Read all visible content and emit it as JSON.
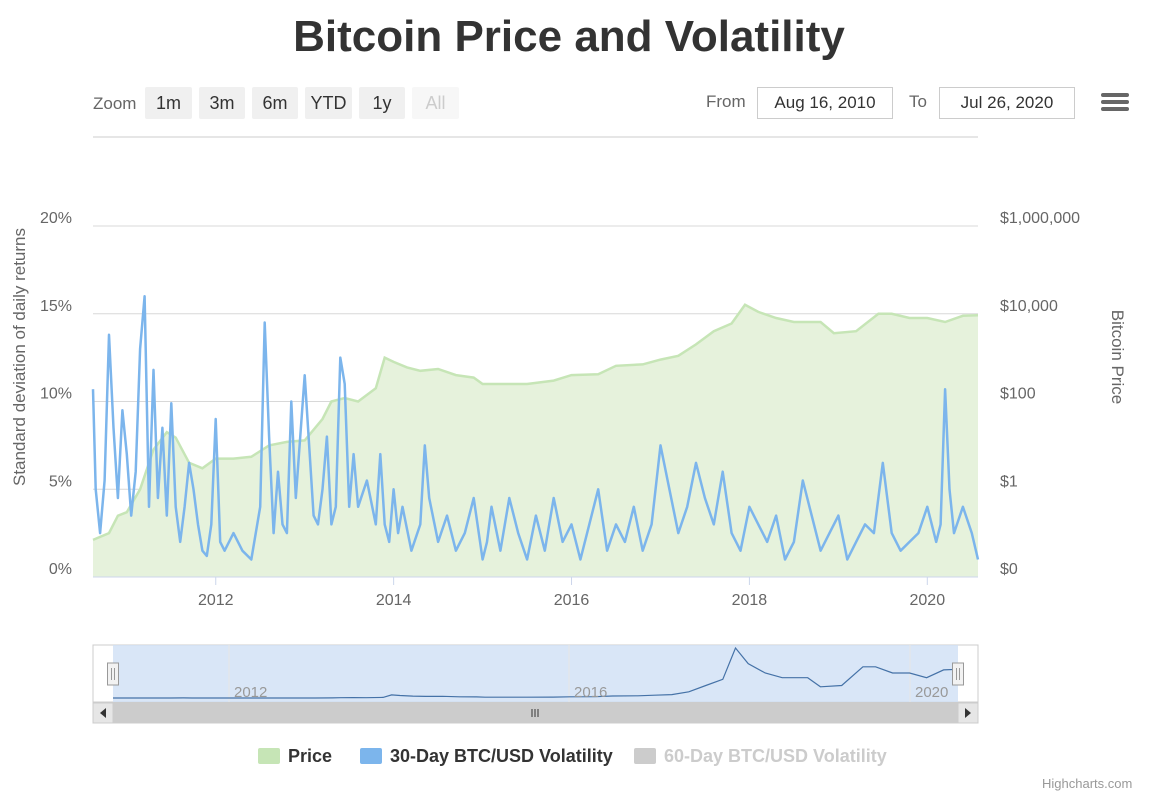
{
  "title": "Bitcoin Price and Volatility",
  "zoom": {
    "label": "Zoom",
    "buttons": [
      {
        "label": "1m",
        "enabled": true
      },
      {
        "label": "3m",
        "enabled": true
      },
      {
        "label": "6m",
        "enabled": true
      },
      {
        "label": "YTD",
        "enabled": true
      },
      {
        "label": "1y",
        "enabled": true
      },
      {
        "label": "All",
        "enabled": false
      }
    ]
  },
  "range": {
    "from_label": "From",
    "from_value": "Aug 16, 2010",
    "to_label": "To",
    "to_value": "Jul 26, 2020"
  },
  "menu_icon": "hamburger-menu-icon",
  "legend": [
    {
      "name": "Price",
      "color": "#c6e5b6",
      "visible": true
    },
    {
      "name": "30-Day BTC/USD Volatility",
      "color": "#7cb5ec",
      "visible": true
    },
    {
      "name": "60-Day BTC/USD Volatility",
      "color": "#cccccc",
      "visible": false
    }
  ],
  "credits": "Highcharts.com",
  "navigator": {
    "tick_labels": [
      "2012",
      "2016",
      "2020"
    ],
    "scroll_icons": [
      "scroll-left-icon",
      "scroll-grip-icon",
      "scroll-right-icon"
    ]
  },
  "chart_data": {
    "type": "line",
    "x_range": [
      2010.62,
      2020.57
    ],
    "x_ticks": [
      {
        "label": "2012",
        "value": 2012
      },
      {
        "label": "2014",
        "value": 2014
      },
      {
        "label": "2016",
        "value": 2016
      },
      {
        "label": "2018",
        "value": 2018
      },
      {
        "label": "2020",
        "value": 2020
      }
    ],
    "y_left": {
      "label": "Standard deviation of daily returns",
      "ticks": [
        "0%",
        "5%",
        "10%",
        "15%",
        "20%"
      ],
      "range": [
        0,
        20
      ]
    },
    "y_right": {
      "label": "Bitcoin Price",
      "scale": "log",
      "ticks": [
        "$0",
        "$1",
        "$100",
        "$10,000",
        "$1,000,000"
      ]
    },
    "colors": {
      "price_fill": "#e6f2dc",
      "price_line": "#c6e5b6",
      "volatility": "#7cb5ec",
      "grid": "#d8d8d8"
    },
    "series": [
      {
        "name": "Price",
        "type": "area",
        "x": [
          2010.62,
          2010.8,
          2010.9,
          2011.0,
          2011.15,
          2011.3,
          2011.45,
          2011.55,
          2011.7,
          2011.85,
          2012.0,
          2012.2,
          2012.4,
          2012.6,
          2012.8,
          2013.0,
          2013.2,
          2013.3,
          2013.45,
          2013.6,
          2013.8,
          2013.9,
          2014.0,
          2014.15,
          2014.3,
          2014.5,
          2014.7,
          2014.9,
          2015.0,
          2015.2,
          2015.5,
          2015.8,
          2016.0,
          2016.3,
          2016.5,
          2016.8,
          2017.0,
          2017.2,
          2017.4,
          2017.6,
          2017.8,
          2017.95,
          2018.1,
          2018.3,
          2018.5,
          2018.8,
          2018.95,
          2019.2,
          2019.45,
          2019.6,
          2019.8,
          2020.0,
          2020.2,
          2020.4,
          2020.57
        ],
        "values": [
          0.07,
          0.1,
          0.25,
          0.3,
          1.0,
          8.0,
          20.0,
          15.0,
          4.0,
          3.0,
          5.0,
          5.0,
          5.5,
          10.0,
          12.0,
          13.0,
          40.0,
          100.0,
          120.0,
          100.0,
          200.0,
          1000.0,
          800.0,
          600.0,
          500.0,
          550.0,
          400.0,
          350.0,
          250.0,
          250.0,
          250.0,
          300.0,
          400.0,
          420.0,
          650.0,
          700.0,
          900.0,
          1100.0,
          2000.0,
          4000.0,
          6000.0,
          16000.0,
          11000.0,
          8000.0,
          6500.0,
          6500.0,
          3600.0,
          4000.0,
          10000.0,
          10000.0,
          8000.0,
          8000.0,
          6500.0,
          9000.0,
          9200.0
        ]
      },
      {
        "name": "30-Day BTC/USD Volatility",
        "type": "line",
        "x": [
          2010.62,
          2010.65,
          2010.7,
          2010.75,
          2010.8,
          2010.85,
          2010.9,
          2010.95,
          2011.0,
          2011.05,
          2011.1,
          2011.15,
          2011.2,
          2011.25,
          2011.3,
          2011.35,
          2011.4,
          2011.45,
          2011.5,
          2011.55,
          2011.6,
          2011.65,
          2011.7,
          2011.75,
          2011.8,
          2011.85,
          2011.9,
          2011.95,
          2012.0,
          2012.05,
          2012.1,
          2012.2,
          2012.3,
          2012.4,
          2012.5,
          2012.55,
          2012.6,
          2012.65,
          2012.7,
          2012.75,
          2012.8,
          2012.85,
          2012.9,
          2013.0,
          2013.1,
          2013.15,
          2013.2,
          2013.25,
          2013.3,
          2013.35,
          2013.4,
          2013.45,
          2013.5,
          2013.55,
          2013.6,
          2013.7,
          2013.8,
          2013.85,
          2013.9,
          2013.95,
          2014.0,
          2014.05,
          2014.1,
          2014.2,
          2014.3,
          2014.35,
          2014.4,
          2014.5,
          2014.6,
          2014.7,
          2014.8,
          2014.9,
          2015.0,
          2015.05,
          2015.1,
          2015.2,
          2015.3,
          2015.4,
          2015.5,
          2015.6,
          2015.7,
          2015.8,
          2015.9,
          2016.0,
          2016.1,
          2016.2,
          2016.3,
          2016.4,
          2016.5,
          2016.6,
          2016.7,
          2016.8,
          2016.9,
          2017.0,
          2017.1,
          2017.2,
          2017.3,
          2017.4,
          2017.5,
          2017.6,
          2017.7,
          2017.8,
          2017.9,
          2018.0,
          2018.1,
          2018.2,
          2018.3,
          2018.4,
          2018.5,
          2018.6,
          2018.7,
          2018.8,
          2018.9,
          2019.0,
          2019.1,
          2019.2,
          2019.3,
          2019.4,
          2019.5,
          2019.6,
          2019.7,
          2019.8,
          2019.9,
          2020.0,
          2020.1,
          2020.15,
          2020.2,
          2020.25,
          2020.3,
          2020.4,
          2020.5,
          2020.57
        ],
        "values": [
          10.7,
          5.0,
          2.5,
          5.5,
          13.8,
          8.5,
          4.5,
          9.5,
          7.0,
          3.5,
          6.0,
          13.0,
          16.0,
          4.0,
          11.8,
          4.5,
          8.5,
          3.5,
          9.9,
          4.0,
          2.0,
          4.0,
          6.5,
          5.0,
          3.0,
          1.5,
          1.2,
          3.0,
          9.0,
          2.0,
          1.5,
          2.5,
          1.5,
          1.0,
          4.0,
          14.5,
          8.0,
          2.5,
          6.0,
          3.0,
          2.5,
          10.0,
          4.5,
          11.5,
          3.5,
          3.0,
          5.0,
          8.0,
          3.0,
          4.0,
          12.5,
          11.0,
          4.0,
          7.0,
          4.0,
          5.5,
          3.0,
          7.0,
          3.0,
          2.0,
          5.0,
          2.5,
          4.0,
          1.5,
          3.0,
          7.5,
          4.5,
          2.0,
          3.5,
          1.5,
          2.5,
          4.5,
          1.0,
          2.0,
          4.0,
          1.5,
          4.5,
          2.5,
          1.0,
          3.5,
          1.5,
          4.5,
          2.0,
          3.0,
          1.0,
          3.0,
          5.0,
          1.5,
          3.0,
          2.0,
          4.0,
          1.5,
          3.0,
          7.5,
          5.0,
          2.5,
          4.0,
          6.5,
          4.5,
          3.0,
          6.0,
          2.5,
          1.5,
          4.0,
          3.0,
          2.0,
          3.5,
          1.0,
          2.0,
          5.5,
          3.5,
          1.5,
          2.5,
          3.5,
          1.0,
          2.0,
          3.0,
          2.5,
          6.5,
          2.5,
          1.5,
          2.0,
          2.5,
          4.0,
          2.0,
          3.0,
          10.7,
          5.0,
          2.5,
          4.0,
          2.5,
          1.0
        ]
      }
    ]
  }
}
